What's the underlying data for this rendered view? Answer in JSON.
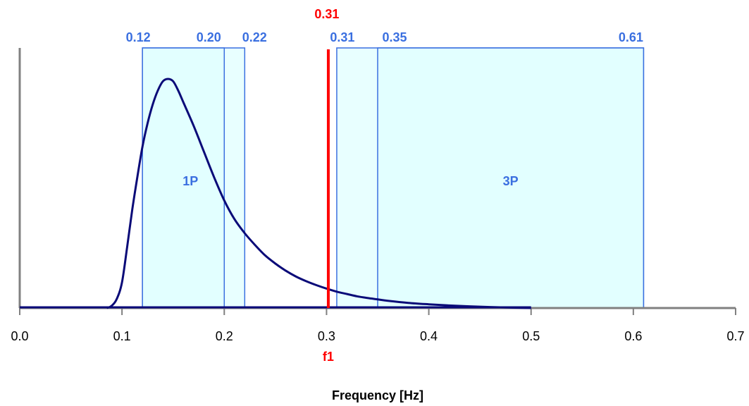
{
  "chart_data": {
    "type": "line",
    "xlabel": "Frequency [Hz]",
    "ylabel": "",
    "xlim": [
      0.0,
      0.7
    ],
    "ylim": [
      0,
      1
    ],
    "x_ticks": [
      "0.0",
      "0.1",
      "0.2",
      "0.3",
      "0.4",
      "0.5",
      "0.6",
      "0.7"
    ],
    "grid": false,
    "legend": "none",
    "colors": {
      "curve": "#0a0a78",
      "band_fill": "#e0ffff",
      "band_stroke": "#3a6fe0",
      "band_text": "#3a6fe0",
      "f1_line": "#ff0000",
      "axis": "#808080"
    },
    "curve": {
      "x": [
        0.085,
        0.09,
        0.095,
        0.1,
        0.105,
        0.11,
        0.115,
        0.12,
        0.125,
        0.13,
        0.135,
        0.14,
        0.145,
        0.15,
        0.155,
        0.16,
        0.17,
        0.18,
        0.19,
        0.2,
        0.21,
        0.22,
        0.23,
        0.24,
        0.25,
        0.26,
        0.27,
        0.28,
        0.29,
        0.3,
        0.31,
        0.32,
        0.33,
        0.34,
        0.35,
        0.36,
        0.38,
        0.4,
        0.42,
        0.44,
        0.46,
        0.48,
        0.5
      ],
      "y": [
        0.0,
        0.01,
        0.04,
        0.11,
        0.26,
        0.42,
        0.56,
        0.69,
        0.79,
        0.87,
        0.93,
        0.97,
        0.98,
        0.97,
        0.93,
        0.88,
        0.78,
        0.67,
        0.56,
        0.46,
        0.38,
        0.32,
        0.27,
        0.225,
        0.19,
        0.16,
        0.135,
        0.115,
        0.098,
        0.083,
        0.07,
        0.06,
        0.05,
        0.043,
        0.037,
        0.031,
        0.022,
        0.016,
        0.011,
        0.007,
        0.004,
        0.002,
        0.0
      ]
    },
    "bands": [
      {
        "name": "1P",
        "inner": [
          0.12,
          0.2
        ],
        "outer_end": 0.22,
        "start_label": "0.12",
        "inner_end_label": "0.20",
        "outer_end_label": "0.22"
      },
      {
        "name": "3P",
        "inner": [
          0.35,
          0.61
        ],
        "outer_start": 0.31,
        "outer_start_label": "0.31",
        "start_label": "0.35",
        "end_label": "0.61"
      }
    ],
    "f1": {
      "x": 0.31,
      "label": "f1",
      "value_label": "0.31"
    }
  }
}
